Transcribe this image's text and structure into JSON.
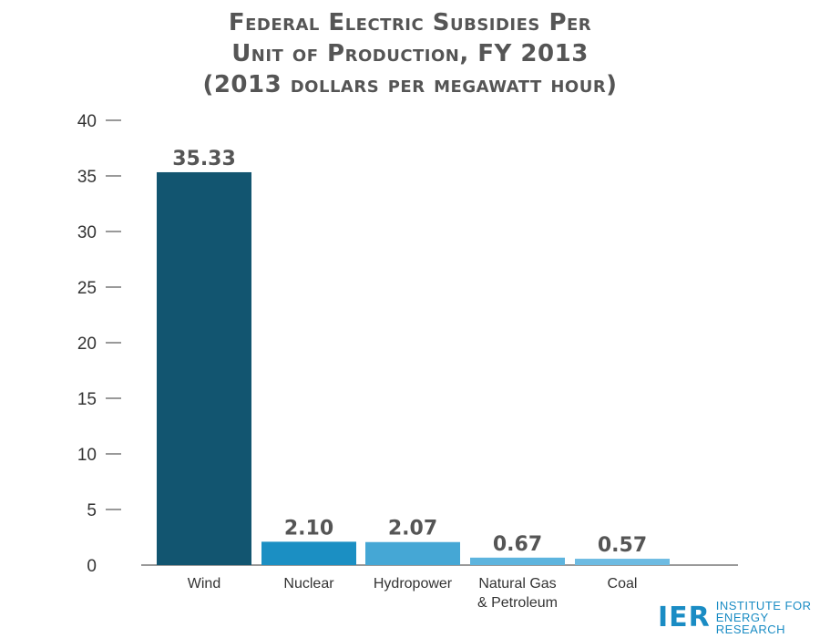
{
  "title_lines": [
    "Federal Electric Subsidies Per",
    "Unit of Production, FY 2013",
    "(2013 dollars per megawatt hour)"
  ],
  "logo": {
    "mark": "IER",
    "line1": "INSTITUTE FOR",
    "line2": "ENERGY RESEARCH"
  },
  "colors": {
    "wind": "#125570",
    "nuclear": "#1b8fc3",
    "hydropower": "#45a7d5",
    "natural_gas": "#5db4de",
    "coal": "#6dbbe2",
    "axis": "#333333",
    "text": "#555555"
  },
  "chart_data": {
    "type": "bar",
    "title": "Federal Electric Subsidies Per Unit of Production, FY 2013 (2013 dollars per megawatt hour)",
    "categories": [
      "Wind",
      "Nuclear",
      "Hydropower",
      "Natural Gas\n& Petroleum",
      "Coal"
    ],
    "values": [
      35.33,
      2.1,
      2.07,
      0.67,
      0.57
    ],
    "value_labels": [
      "35.33",
      "2.10",
      "2.07",
      "0.67",
      "0.57"
    ],
    "ylim": [
      0,
      40
    ],
    "yticks": [
      0,
      5,
      10,
      15,
      20,
      25,
      30,
      35,
      40
    ],
    "grid": false,
    "legend": "none"
  }
}
